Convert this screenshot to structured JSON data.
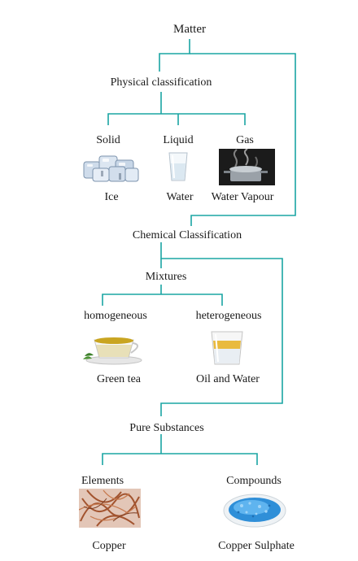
{
  "diagram": {
    "root": "Matter",
    "physical": {
      "title": "Physical classification",
      "items": [
        {
          "category": "Solid",
          "example": "Ice"
        },
        {
          "category": "Liquid",
          "example": "Water"
        },
        {
          "category": "Gas",
          "example": "Water Vapour"
        }
      ]
    },
    "chemical": {
      "title": "Chemical Classification"
    },
    "mixtures": {
      "title": "Mixtures",
      "items": [
        {
          "category": "homogeneous",
          "example": "Green tea"
        },
        {
          "category": "heterogeneous",
          "example": "Oil and Water"
        }
      ]
    },
    "pure": {
      "title": "Pure Substances",
      "items": [
        {
          "category": "Elements",
          "example": "Copper"
        },
        {
          "category": "Compounds",
          "example": "Copper Sulphate"
        }
      ]
    }
  },
  "colors": {
    "connector": "#1aa5a3",
    "text": "#1a1a1a"
  },
  "icons": [
    "ice-cubes-icon",
    "water-glass-icon",
    "steaming-pot-icon",
    "green-tea-cup-icon",
    "oil-water-glass-icon",
    "copper-wire-icon",
    "copper-sulphate-dish-icon"
  ]
}
